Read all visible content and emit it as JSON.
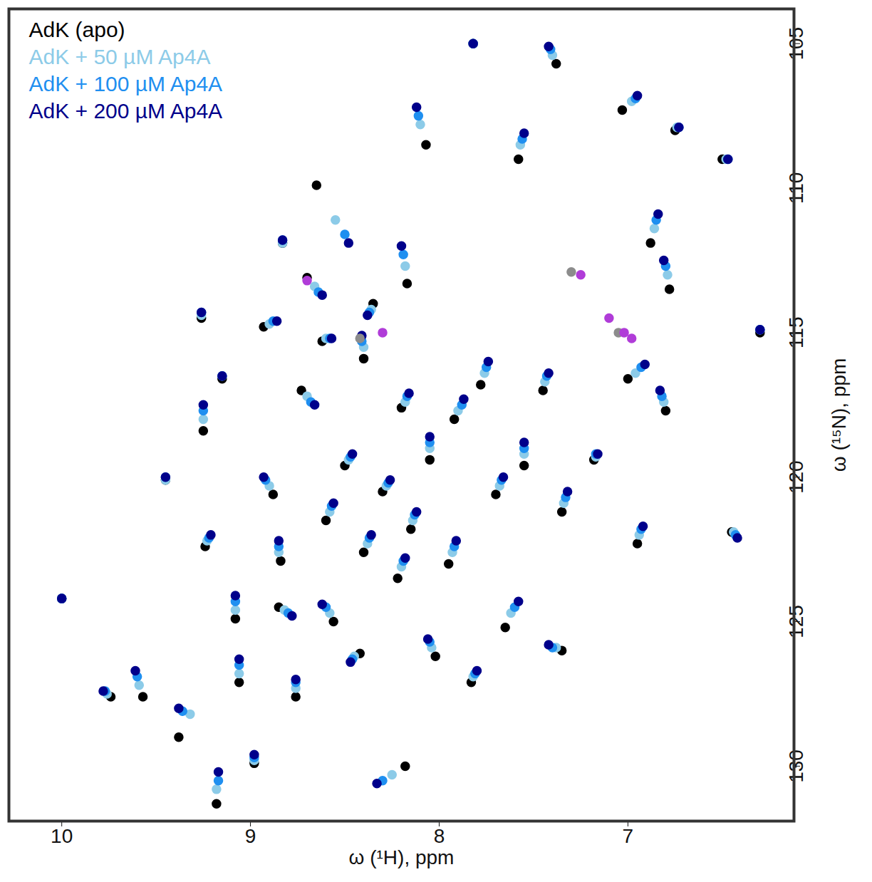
{
  "chart_data": {
    "type": "scatter",
    "x_label": "ω (¹H), ppm",
    "y_label": "ω (¹⁵N), ppm",
    "xlim": [
      10.28,
      6.12
    ],
    "xticks": [
      10,
      9,
      8,
      7
    ],
    "ylim": [
      131.9,
      103.8
    ],
    "yticks": [
      105,
      110,
      115,
      120,
      125,
      130
    ],
    "legend": "top-left",
    "grid": false,
    "marker": "circle",
    "series": [
      {
        "name": "AdK (apo)",
        "color": "#000000",
        "x": [
          10.0,
          9.74,
          9.57,
          9.45,
          9.38,
          9.26,
          9.24,
          9.18,
          9.15,
          9.25,
          8.98,
          9.06,
          9.08,
          8.88,
          8.84,
          8.83,
          8.93,
          8.65,
          8.7,
          8.73,
          8.62,
          8.4,
          8.35,
          8.17,
          8.07,
          7.82,
          7.38,
          7.58,
          7.03,
          6.75,
          6.5,
          6.3,
          6.88,
          6.78,
          7.0,
          6.8,
          6.45,
          6.95,
          7.18,
          7.35,
          7.35,
          7.65,
          7.83,
          8.18,
          8.02,
          8.42,
          8.56,
          8.76,
          8.3,
          8.15,
          8.4,
          8.05,
          7.92,
          7.7,
          7.55,
          8.5,
          8.22,
          7.95,
          8.6,
          7.45,
          7.78,
          8.85,
          8.2
        ],
        "y": [
          124.2,
          127.6,
          127.6,
          120.1,
          129.0,
          114.5,
          122.4,
          131.3,
          116.6,
          118.4,
          129.9,
          127.1,
          124.9,
          120.6,
          122.9,
          111.9,
          114.8,
          109.9,
          113.1,
          117.0,
          115.3,
          115.9,
          114.0,
          113.3,
          108.5,
          105.0,
          105.7,
          109.0,
          107.3,
          108.0,
          109.0,
          115.0,
          111.9,
          113.5,
          116.6,
          117.7,
          121.9,
          122.3,
          119.4,
          121.2,
          126.0,
          125.2,
          127.1,
          130.0,
          126.2,
          126.1,
          125.0,
          127.6,
          120.5,
          121.8,
          122.6,
          119.4,
          118.0,
          120.6,
          119.6,
          119.6,
          123.5,
          123.0,
          121.5,
          117.0,
          116.8,
          124.5,
          117.6
        ]
      },
      {
        "name": "AdK + 50 µM Ap4A",
        "color": "#8ccbe8",
        "x": [
          10.0,
          9.76,
          9.59,
          9.45,
          9.32,
          9.26,
          9.23,
          9.18,
          9.15,
          9.25,
          8.98,
          9.06,
          9.08,
          8.9,
          8.85,
          8.83,
          8.9,
          8.55,
          8.66,
          8.7,
          8.6,
          8.4,
          8.36,
          8.18,
          8.1,
          7.82,
          7.4,
          7.57,
          6.98,
          6.74,
          6.48,
          6.3,
          6.86,
          6.79,
          6.96,
          6.81,
          6.44,
          6.94,
          7.17,
          7.34,
          7.38,
          7.62,
          7.82,
          8.25,
          8.04,
          8.45,
          8.58,
          8.76,
          8.28,
          8.14,
          8.38,
          8.05,
          7.9,
          7.68,
          7.55,
          8.48,
          8.2,
          7.93,
          8.58,
          7.44,
          7.76,
          8.82,
          8.18
        ],
        "y": [
          124.2,
          127.5,
          127.2,
          120.1,
          128.2,
          114.4,
          122.2,
          130.8,
          116.5,
          118.0,
          129.8,
          126.8,
          124.6,
          120.3,
          122.6,
          111.9,
          114.7,
          111.1,
          113.4,
          117.2,
          115.2,
          115.5,
          114.2,
          112.7,
          107.8,
          105.0,
          105.4,
          108.5,
          107.0,
          107.9,
          109.0,
          114.9,
          111.4,
          113.0,
          116.4,
          117.4,
          121.9,
          122.0,
          119.3,
          120.9,
          125.9,
          124.7,
          126.9,
          130.3,
          125.9,
          126.2,
          124.7,
          127.3,
          120.3,
          121.5,
          122.3,
          119.0,
          117.7,
          120.3,
          119.2,
          119.4,
          123.1,
          122.6,
          121.2,
          116.7,
          116.4,
          124.6,
          117.4
        ]
      },
      {
        "name": "AdK + 100 µM Ap4A",
        "color": "#1f8ff0",
        "x": [
          10.0,
          9.77,
          9.6,
          9.45,
          9.36,
          9.26,
          9.22,
          9.17,
          9.15,
          9.25,
          8.98,
          9.06,
          9.08,
          8.92,
          8.85,
          8.83,
          8.88,
          8.5,
          8.64,
          8.68,
          8.58,
          8.41,
          8.37,
          8.19,
          8.11,
          7.82,
          7.41,
          7.56,
          6.96,
          6.73,
          6.47,
          6.3,
          6.85,
          6.8,
          6.93,
          6.82,
          6.43,
          6.93,
          7.17,
          7.33,
          7.4,
          7.6,
          7.81,
          8.3,
          8.05,
          8.46,
          8.6,
          8.76,
          8.27,
          8.13,
          8.37,
          8.05,
          7.88,
          7.67,
          7.55,
          8.47,
          8.19,
          7.92,
          8.57,
          7.43,
          7.75,
          8.8,
          8.17
        ],
        "y": [
          124.2,
          127.4,
          126.9,
          120.0,
          128.1,
          114.3,
          122.1,
          130.5,
          116.5,
          117.7,
          129.7,
          126.5,
          124.3,
          120.1,
          122.4,
          111.8,
          114.6,
          111.6,
          113.6,
          117.4,
          115.2,
          115.3,
          114.3,
          112.3,
          107.5,
          105.0,
          105.2,
          108.3,
          106.9,
          107.9,
          109.0,
          114.9,
          111.1,
          112.7,
          116.2,
          117.2,
          122.0,
          121.8,
          119.2,
          120.7,
          125.9,
          124.5,
          126.8,
          130.5,
          125.7,
          126.3,
          124.5,
          127.1,
          120.2,
          121.3,
          122.1,
          118.8,
          117.5,
          120.1,
          119.0,
          119.3,
          122.9,
          122.4,
          121.0,
          116.5,
          116.2,
          124.7,
          117.2
        ]
      },
      {
        "name": "AdK + 200 µM Ap4A",
        "color": "#00008b",
        "x": [
          10.0,
          9.78,
          9.61,
          9.45,
          9.38,
          9.26,
          9.21,
          9.17,
          9.15,
          9.25,
          8.98,
          9.06,
          9.08,
          8.93,
          8.85,
          8.83,
          8.86,
          8.48,
          8.62,
          8.66,
          8.57,
          8.41,
          8.38,
          8.2,
          8.12,
          7.82,
          7.42,
          7.55,
          6.95,
          6.73,
          6.47,
          6.3,
          6.84,
          6.81,
          6.91,
          6.83,
          6.42,
          6.92,
          7.16,
          7.32,
          7.42,
          7.58,
          7.8,
          8.33,
          8.06,
          8.47,
          8.62,
          8.76,
          8.26,
          8.12,
          8.36,
          8.05,
          7.87,
          7.66,
          7.55,
          8.46,
          8.18,
          7.91,
          8.56,
          7.42,
          7.74,
          8.78,
          8.16
        ],
        "y": [
          124.2,
          127.4,
          126.7,
          120.0,
          128.0,
          114.3,
          122.0,
          130.2,
          116.5,
          117.5,
          129.6,
          126.3,
          124.1,
          120.0,
          122.2,
          111.8,
          114.6,
          111.9,
          113.7,
          117.5,
          115.2,
          115.1,
          114.4,
          112.0,
          107.2,
          105.0,
          105.1,
          108.1,
          106.8,
          107.9,
          109.0,
          114.9,
          110.9,
          112.5,
          116.1,
          117.0,
          122.1,
          121.7,
          119.2,
          120.5,
          125.8,
          124.3,
          126.7,
          130.6,
          125.6,
          126.4,
          124.4,
          127.0,
          120.1,
          121.2,
          122.0,
          118.6,
          117.3,
          120.0,
          118.8,
          119.2,
          122.8,
          122.2,
          120.9,
          116.4,
          116.0,
          124.8,
          117.1
        ]
      },
      {
        "color": "#8c8c8c",
        "x": [
          8.42,
          7.3,
          7.05
        ],
        "y": [
          115.2,
          112.9,
          115.0
        ]
      },
      {
        "color": "#b03cd8",
        "x": [
          8.7,
          8.3,
          7.25,
          7.1,
          7.02,
          6.98
        ],
        "y": [
          113.2,
          115.0,
          113.0,
          114.5,
          115.0,
          115.2
        ]
      }
    ]
  }
}
